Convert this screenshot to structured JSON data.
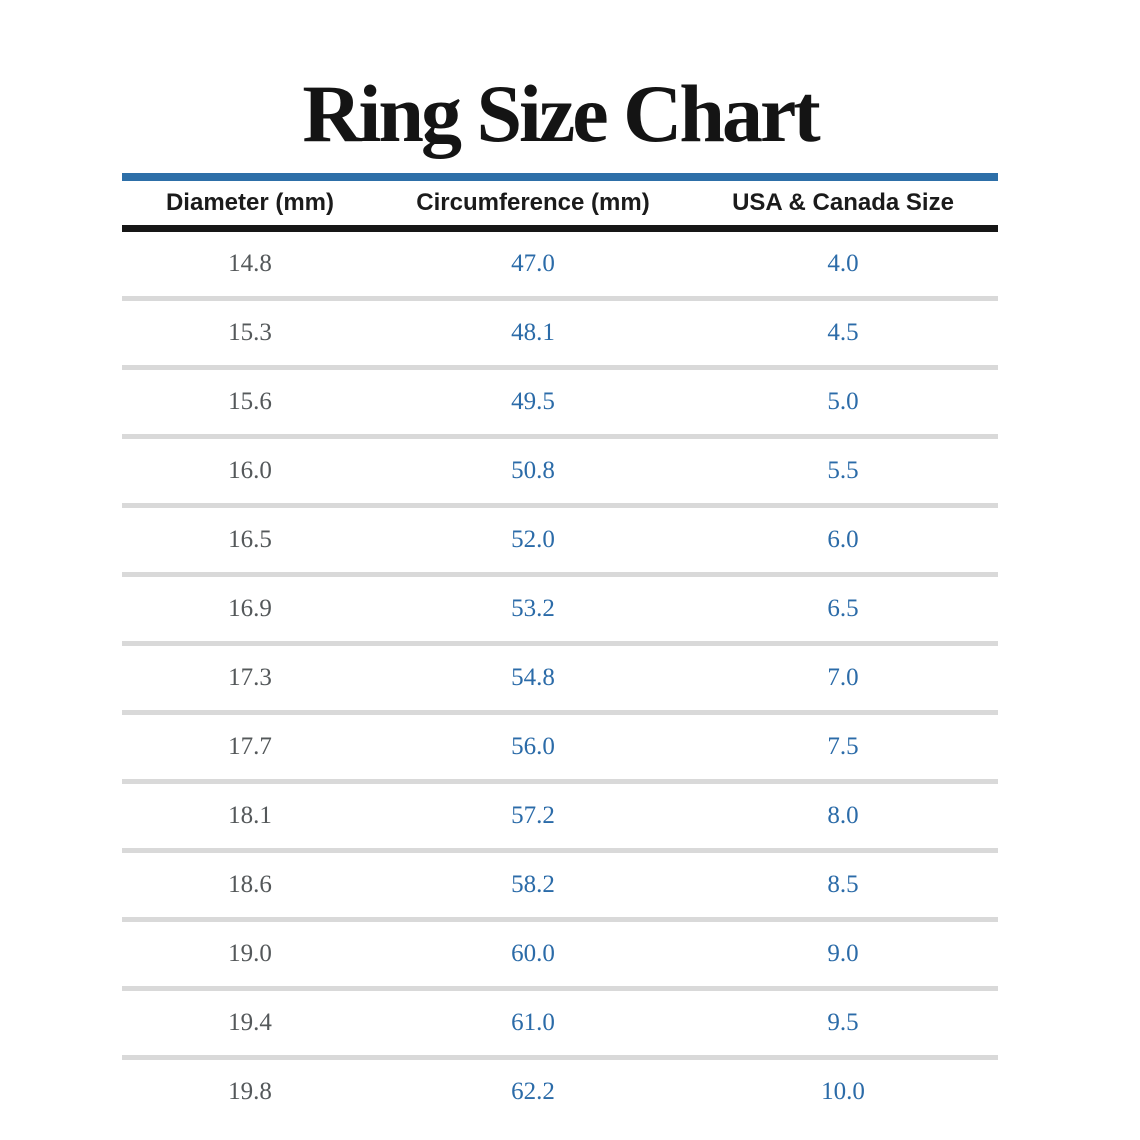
{
  "title": "Ring Size Chart",
  "colors": {
    "accent_blue_rule": "#2d6fa8",
    "value_blue": "#2b6ba8",
    "diameter_gray": "#54585a",
    "separator_gray": "#d9d9d9",
    "header_rule_black": "#161616"
  },
  "table": {
    "headers": [
      "Diameter (mm)",
      "Circumference (mm)",
      "USA & Canada Size"
    ],
    "rows": [
      [
        "14.8",
        "47.0",
        "4.0"
      ],
      [
        "15.3",
        "48.1",
        "4.5"
      ],
      [
        "15.6",
        "49.5",
        "5.0"
      ],
      [
        "16.0",
        "50.8",
        "5.5"
      ],
      [
        "16.5",
        "52.0",
        "6.0"
      ],
      [
        "16.9",
        "53.2",
        "6.5"
      ],
      [
        "17.3",
        "54.8",
        "7.0"
      ],
      [
        "17.7",
        "56.0",
        "7.5"
      ],
      [
        "18.1",
        "57.2",
        "8.0"
      ],
      [
        "18.6",
        "58.2",
        "8.5"
      ],
      [
        "19.0",
        "60.0",
        "9.0"
      ],
      [
        "19.4",
        "61.0",
        "9.5"
      ],
      [
        "19.8",
        "62.2",
        "10.0"
      ]
    ]
  },
  "chart_data": {
    "type": "table",
    "title": "Ring Size Chart",
    "columns": [
      "Diameter (mm)",
      "Circumference (mm)",
      "USA & Canada Size"
    ],
    "rows": [
      [
        14.8,
        47.0,
        4.0
      ],
      [
        15.3,
        48.1,
        4.5
      ],
      [
        15.6,
        49.5,
        5.0
      ],
      [
        16.0,
        50.8,
        5.5
      ],
      [
        16.5,
        52.0,
        6.0
      ],
      [
        16.9,
        53.2,
        6.5
      ],
      [
        17.3,
        54.8,
        7.0
      ],
      [
        17.7,
        56.0,
        7.5
      ],
      [
        18.1,
        57.2,
        8.0
      ],
      [
        18.6,
        58.2,
        8.5
      ],
      [
        19.0,
        60.0,
        9.0
      ],
      [
        19.4,
        61.0,
        9.5
      ],
      [
        19.8,
        62.2,
        10.0
      ]
    ]
  }
}
